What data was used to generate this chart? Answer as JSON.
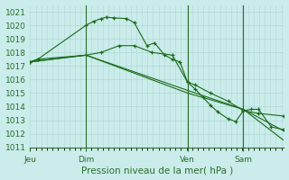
{
  "title": "Pression niveau de la mer( hPa )",
  "ylim": [
    1011,
    1021.5
  ],
  "yticks": [
    1011,
    1012,
    1013,
    1014,
    1015,
    1016,
    1017,
    1018,
    1019,
    1020,
    1021
  ],
  "bg_color": "#caecea",
  "grid_color": "#b0d8d4",
  "line_color": "#1a6b1a",
  "axis_color": "#2d6e2d",
  "xtick_labels": [
    "Jeu",
    "Dim",
    "Ven",
    "Sam"
  ],
  "xtick_positions": [
    0.0,
    0.22,
    0.62,
    0.84
  ],
  "vline_positions": [
    0.22,
    0.62,
    0.84
  ],
  "xlim": [
    0.0,
    1.0
  ],
  "series": [
    {
      "x": [
        0.0,
        0.03,
        0.22,
        0.25,
        0.28,
        0.3,
        0.33,
        0.38,
        0.41,
        0.46,
        0.49,
        0.53,
        0.56,
        0.59,
        0.62,
        0.65,
        0.68,
        0.71,
        0.74,
        0.78,
        0.81,
        0.84,
        0.87,
        0.9,
        0.95,
        1.0
      ],
      "y": [
        1017.3,
        1017.5,
        1020.0,
        1020.3,
        1020.5,
        1020.6,
        1020.55,
        1020.5,
        1020.2,
        1018.5,
        1018.7,
        1017.8,
        1017.5,
        1017.3,
        1015.8,
        1015.3,
        1014.7,
        1014.1,
        1013.6,
        1013.1,
        1012.9,
        1013.7,
        1013.8,
        1013.8,
        1012.5,
        1012.3
      ],
      "marker": "+"
    },
    {
      "x": [
        0.0,
        0.03,
        0.22,
        0.28,
        0.35,
        0.41,
        0.48,
        0.56,
        0.62,
        0.65,
        0.71,
        0.78,
        0.84,
        0.9,
        1.0
      ],
      "y": [
        1017.3,
        1017.5,
        1017.8,
        1018.0,
        1018.5,
        1018.5,
        1018.0,
        1017.8,
        1015.8,
        1015.6,
        1015.0,
        1014.4,
        1013.7,
        1013.5,
        1013.3
      ],
      "marker": "+"
    },
    {
      "x": [
        0.0,
        0.22,
        0.62,
        0.84,
        1.0
      ],
      "y": [
        1017.3,
        1017.8,
        1015.2,
        1013.8,
        1012.2
      ],
      "marker": null
    },
    {
      "x": [
        0.0,
        0.22,
        0.62,
        0.84,
        1.0
      ],
      "y": [
        1017.3,
        1017.8,
        1015.0,
        1013.8,
        1011.5
      ],
      "marker": null
    }
  ]
}
